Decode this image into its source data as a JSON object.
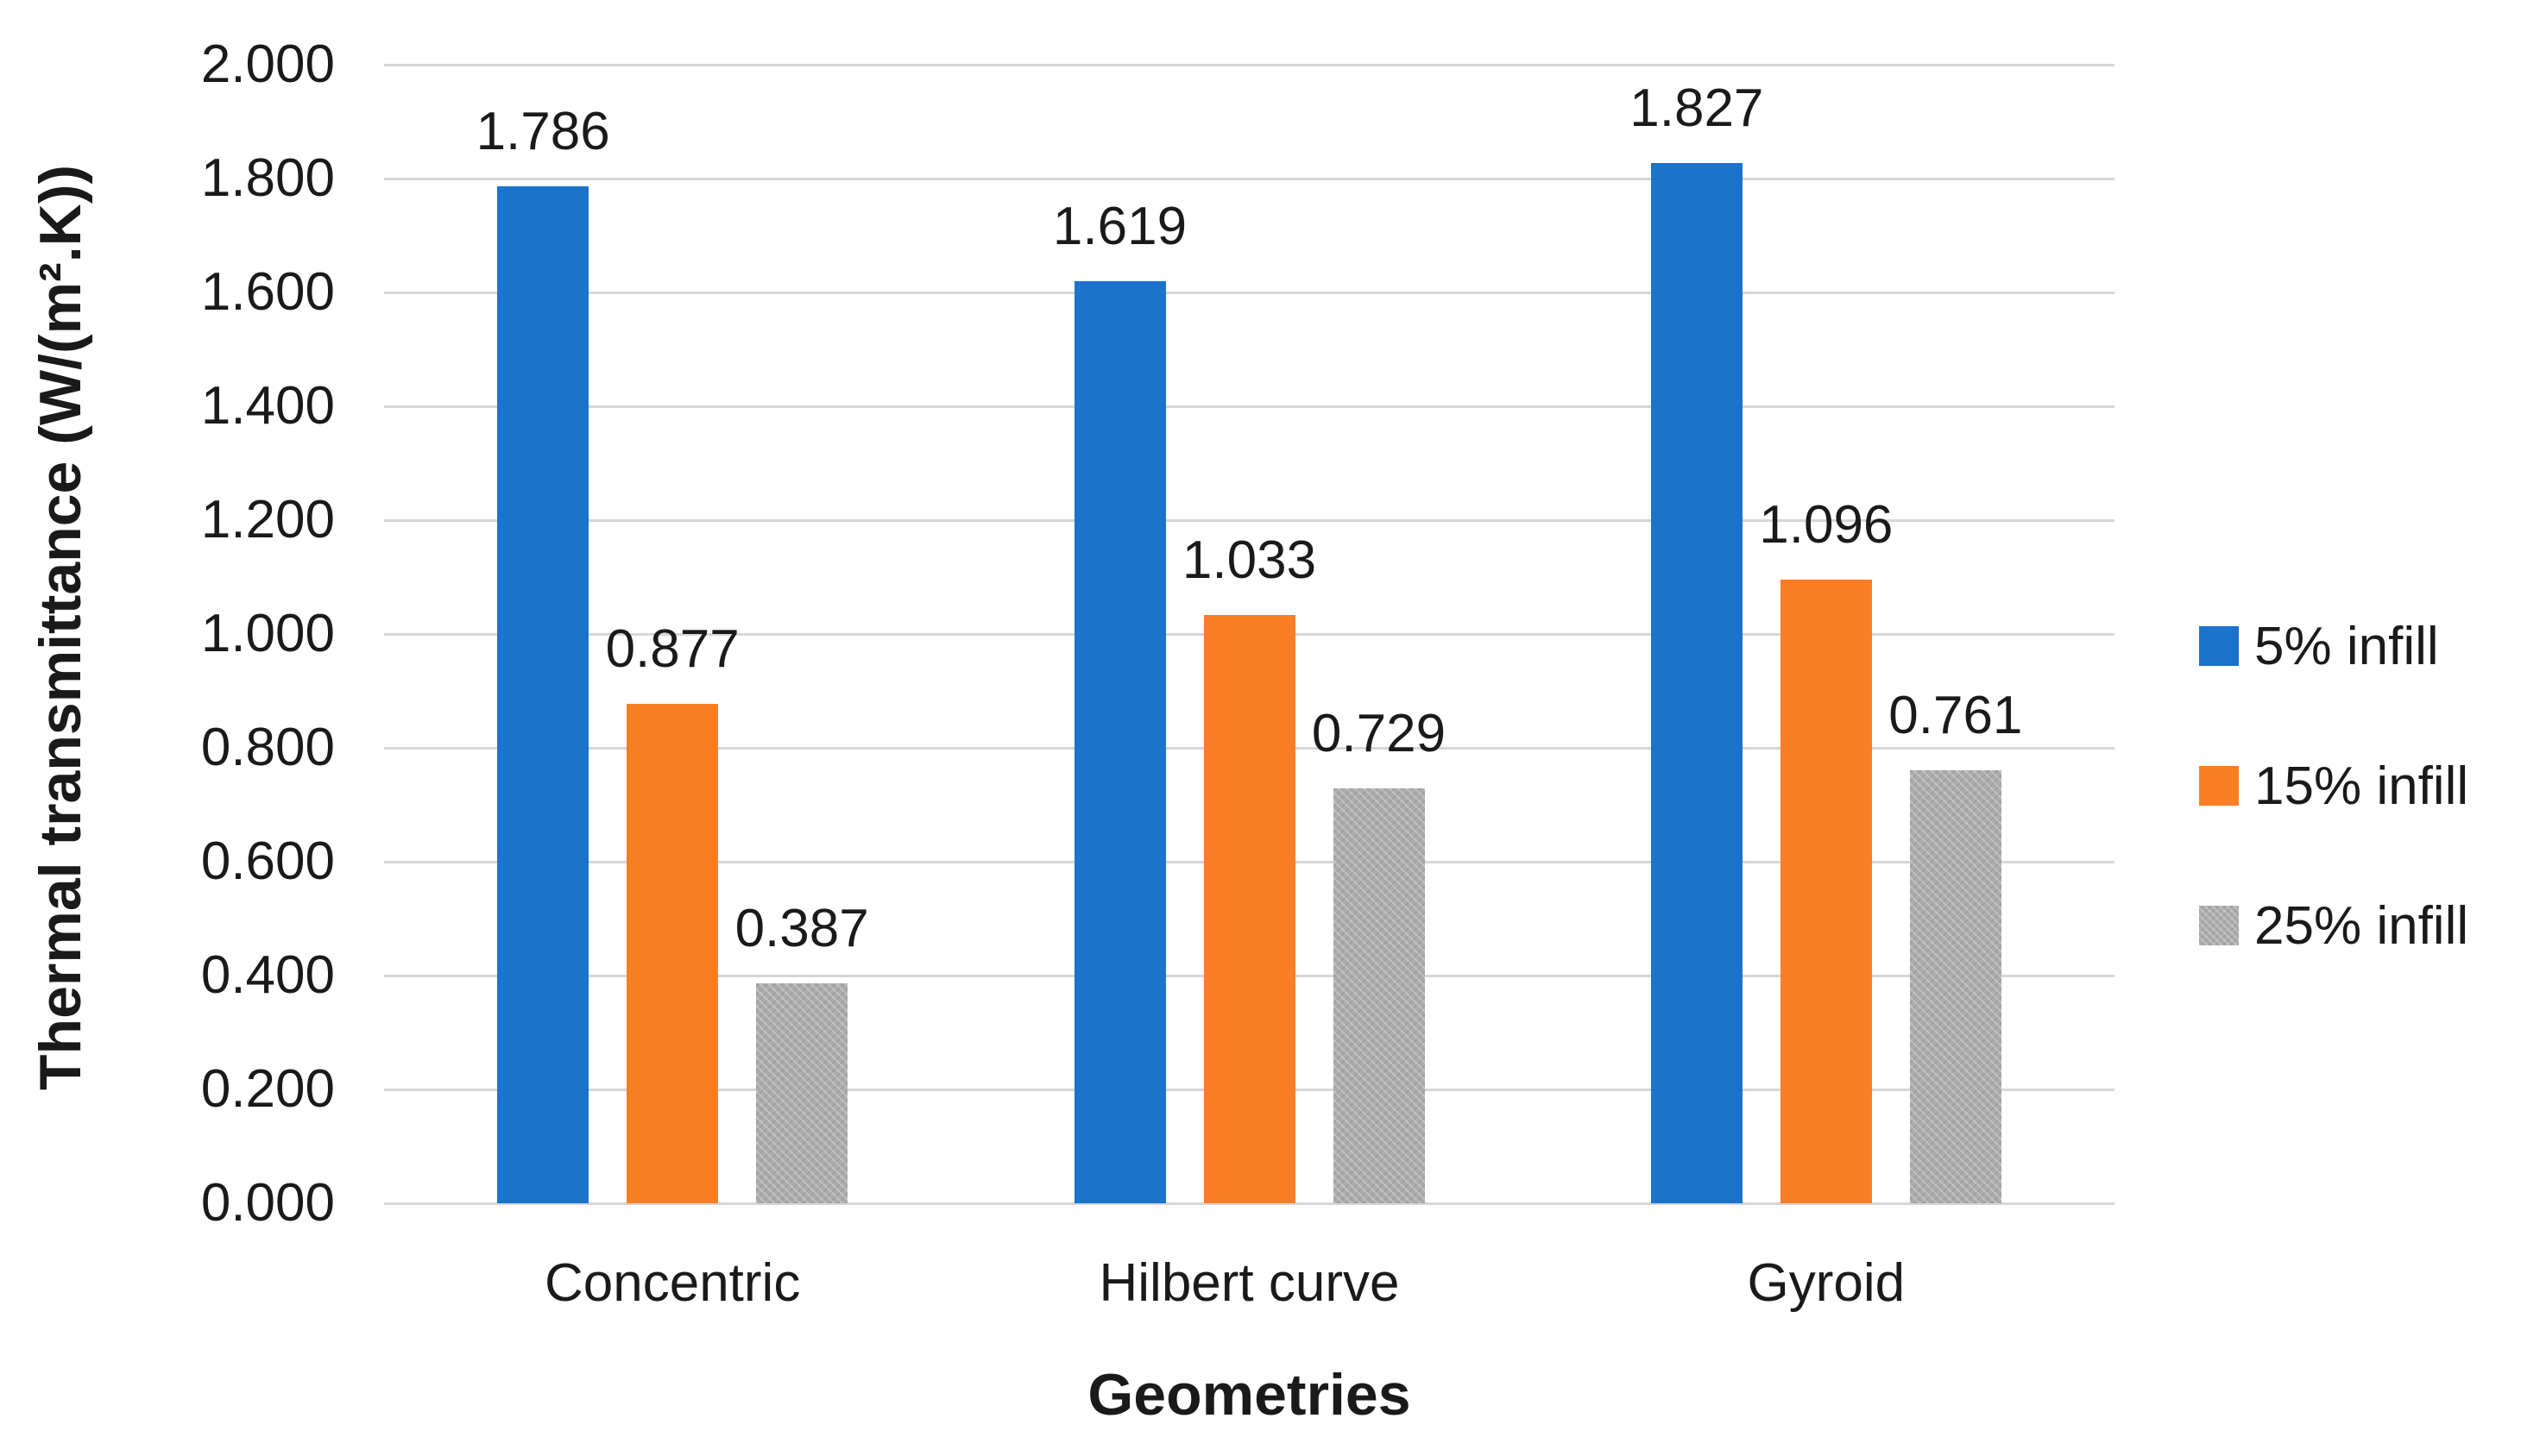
{
  "chart_data": {
    "type": "bar",
    "title": "",
    "categories": [
      "Concentric",
      "Hilbert curve",
      "Gyroid"
    ],
    "series": [
      {
        "name": "5% infill",
        "color": "#1B73CB",
        "textured": false,
        "values": [
          1.786,
          1.619,
          1.827
        ]
      },
      {
        "name": "15% infill",
        "color": "#FB7D26",
        "textured": false,
        "values": [
          0.877,
          1.033,
          1.096
        ]
      },
      {
        "name": "25% infill",
        "color": "#ACACAC",
        "textured": true,
        "values": [
          0.387,
          0.729,
          0.761
        ]
      }
    ],
    "value_labels": [
      [
        "1.786",
        "0.877",
        "0.387"
      ],
      [
        "1.619",
        "1.033",
        "0.729"
      ],
      [
        "1.827",
        "1.096",
        "0.761"
      ]
    ],
    "xlabel": "Geometries",
    "ylabel": "Thermal transmittance (W/(m².K))",
    "ylim": [
      0,
      2
    ],
    "yticks": [
      "0.000",
      "0.200",
      "0.400",
      "0.600",
      "0.800",
      "1.000",
      "1.200",
      "1.400",
      "1.600",
      "1.800",
      "2.000"
    ],
    "grid": true,
    "legend_position": "right",
    "gridline_color": "#D6D6D6",
    "text_color": "#1A1A1A"
  }
}
